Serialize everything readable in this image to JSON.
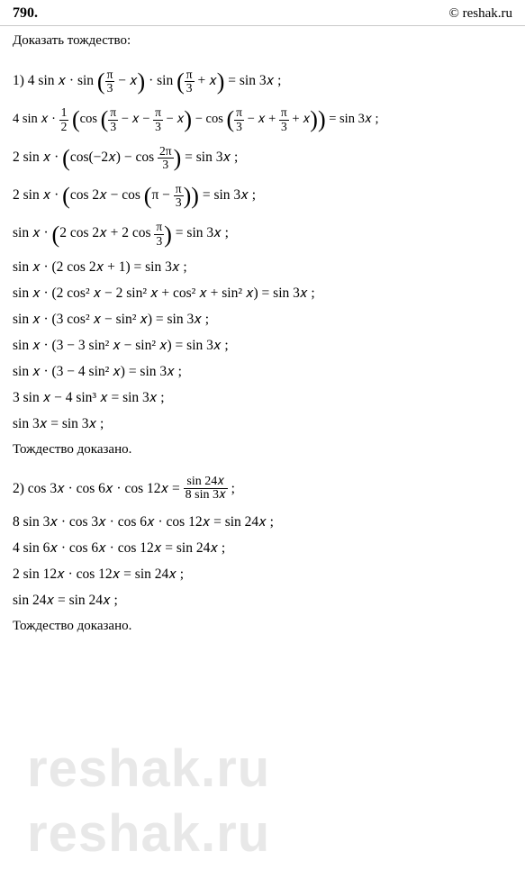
{
  "header": {
    "problem_number": "790.",
    "site": "© reshak.ru"
  },
  "title": "Доказать тождество:",
  "part1": {
    "label": "1) ",
    "eq1_lhs_a": "4 sin ",
    "eq1_rhs": " = sin 3",
    "line2_a": "4 sin ",
    "line2_b": " · ",
    "line2_half_n": "1",
    "line2_half_d": "2",
    "line2_c": "cos ",
    "line2_d": " − cos ",
    "line2_e": " = sin 3",
    "line3_a": "2 sin ",
    "line3_b": "cos(−2",
    "line3_c": ") − cos ",
    "line3_2pi_n": "2π",
    "line3_2pi_d": "3",
    "line3_d": " = sin 3",
    "line4_a": "2 sin ",
    "line4_b": "cos 2",
    "line4_c": " − cos ",
    "line4_d": "π − ",
    "line4_e": " = sin 3",
    "line5_a": "sin ",
    "line5_b": "2 cos 2",
    "line5_c": " + 2 cos ",
    "line5_d": " = sin 3",
    "line6": "sin 𝑥 · (2 cos 2𝑥 + 1) = sin 3𝑥 ;",
    "line7": "sin 𝑥 · (2 cos² 𝑥 − 2 sin² 𝑥 + cos² 𝑥 + sin² 𝑥) = sin 3𝑥 ;",
    "line8": "sin 𝑥 · (3 cos² 𝑥 − sin² 𝑥) = sin 3𝑥 ;",
    "line9": "sin 𝑥 · (3 − 3 sin² 𝑥 − sin² 𝑥) = sin 3𝑥 ;",
    "line10": "sin 𝑥 · (3 − 4 sin² 𝑥) = sin 3𝑥 ;",
    "line11": "3 sin 𝑥 − 4 sin³ 𝑥 = sin 3𝑥 ;",
    "line12": "sin 3𝑥 = sin 3𝑥 ;",
    "proven": "Тождество доказано."
  },
  "part2": {
    "label": "2) ",
    "line1_a": "cos 3𝑥 · cos 6𝑥 · cos 12𝑥 = ",
    "line1_fr_n": "sin 24𝑥",
    "line1_fr_d": "8 sin 3𝑥",
    "line2": "8 sin 3𝑥 · cos 3𝑥 · cos 6𝑥 · cos 12𝑥 = sin 24𝑥 ;",
    "line3": "4 sin 6𝑥 · cos 6𝑥 · cos 12𝑥 = sin 24𝑥 ;",
    "line4": "2 sin 12𝑥 · cos 12𝑥 = sin 24𝑥 ;",
    "line5": "sin 24𝑥 = sin 24𝑥 ;",
    "proven": "Тождество доказано."
  },
  "frac_pi3": {
    "n": "π",
    "d": "3"
  },
  "x": "𝑥",
  "watermark": "reshak.ru"
}
